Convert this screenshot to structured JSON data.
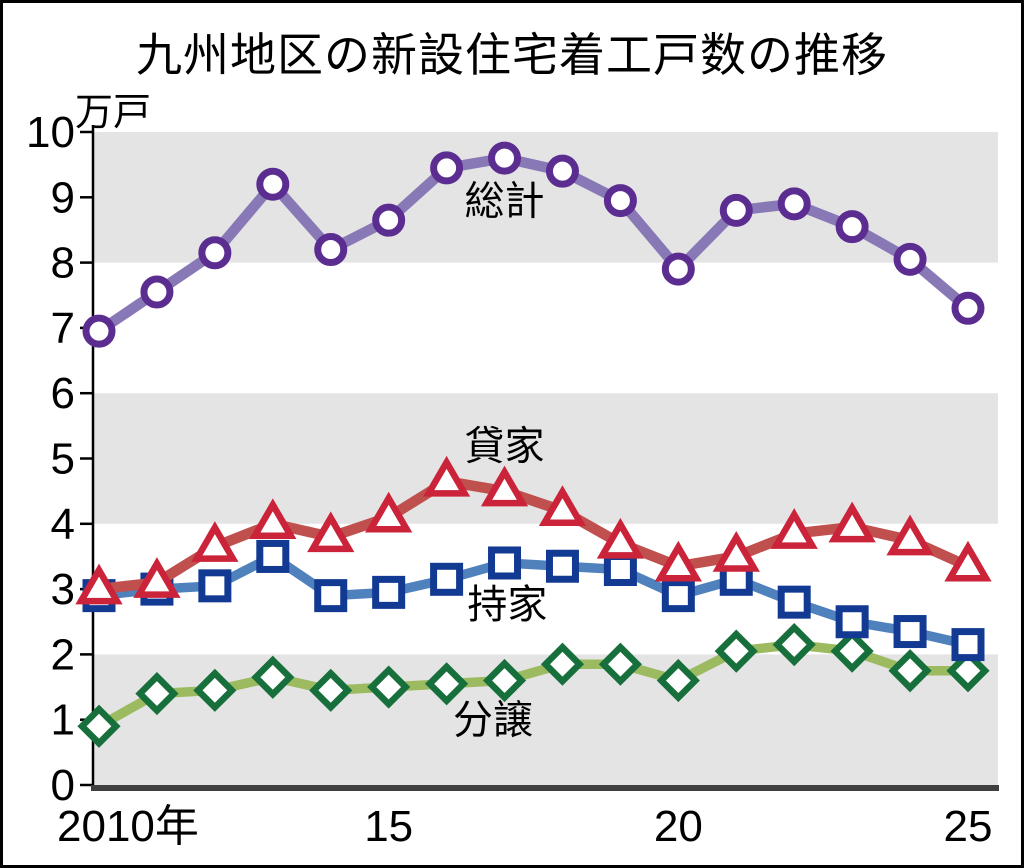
{
  "title": "九州地区の新設住宅着工戸数の推移",
  "unit_label": "万戸",
  "colors": {
    "band_gray": "#e4e4e4",
    "axis_black": "#000000",
    "bottom_axis": "#3f3f3f",
    "total_line": "#8878b6",
    "total_marker": "#5c2d91",
    "rental_line": "#c0504d",
    "rental_marker": "#cb2339",
    "owned_line": "#4f81bd",
    "owned_marker": "#123a92",
    "condo_line": "#9cba5f",
    "condo_marker": "#17703c"
  },
  "chart_data": {
    "type": "line",
    "title": "九州地区の新設住宅着工戸数の推移",
    "ylabel": "万戸",
    "ylim": [
      0,
      10
    ],
    "y_tick_step": 1,
    "grid": false,
    "legend_position": "inline-labels",
    "shaded_bands": [
      [
        8,
        10
      ],
      [
        4,
        6
      ],
      [
        0,
        2
      ]
    ],
    "x": [
      2010,
      2011,
      2012,
      2013,
      2014,
      2015,
      2016,
      2017,
      2018,
      2019,
      2020,
      2021,
      2022,
      2023,
      2024,
      2025
    ],
    "x_ticks": [
      {
        "at": 2010,
        "label": "2010年",
        "anchor": "start"
      },
      {
        "at": 2015,
        "label": "15",
        "anchor": "middle"
      },
      {
        "at": 2020,
        "label": "20",
        "anchor": "middle"
      },
      {
        "at": 2025,
        "label": "25",
        "anchor": "middle"
      }
    ],
    "series": [
      {
        "id": "total",
        "name": "総計",
        "marker": "circle",
        "line_color": "#8878b6",
        "marker_color": "#5c2d91",
        "label_at": [
          2017.0,
          8.95
        ],
        "values": [
          6.95,
          7.55,
          8.15,
          9.2,
          8.2,
          8.65,
          9.45,
          9.6,
          9.4,
          8.95,
          7.9,
          8.8,
          8.9,
          8.55,
          8.05,
          7.3
        ]
      },
      {
        "id": "rental",
        "name": "貸家",
        "marker": "triangle",
        "line_color": "#c0504d",
        "marker_color": "#cb2339",
        "label_at": [
          2017.0,
          5.2
        ],
        "values": [
          3.0,
          3.1,
          3.65,
          4.0,
          3.8,
          4.1,
          4.65,
          4.5,
          4.2,
          3.7,
          3.35,
          3.5,
          3.85,
          3.95,
          3.75,
          3.35
        ]
      },
      {
        "id": "owned",
        "name": "持家",
        "marker": "square",
        "line_color": "#4f81bd",
        "marker_color": "#123a92",
        "label_at": [
          2017.05,
          2.77
        ],
        "values": [
          2.9,
          3.0,
          3.05,
          3.5,
          2.9,
          2.95,
          3.15,
          3.4,
          3.35,
          3.3,
          2.9,
          3.15,
          2.8,
          2.5,
          2.35,
          2.15
        ]
      },
      {
        "id": "condo",
        "name": "分譲",
        "marker": "diamond",
        "line_color": "#9cba5f",
        "marker_color": "#17703c",
        "label_at": [
          2016.8,
          1.0
        ],
        "values": [
          0.9,
          1.4,
          1.45,
          1.65,
          1.45,
          1.5,
          1.55,
          1.6,
          1.85,
          1.85,
          1.6,
          2.05,
          2.15,
          2.05,
          1.75,
          1.75
        ]
      }
    ]
  }
}
